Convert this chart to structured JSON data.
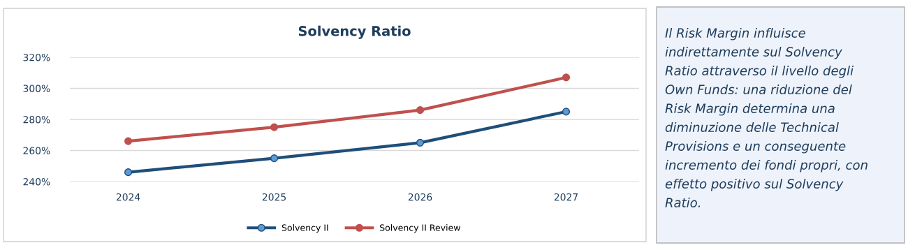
{
  "chart_data": {
    "type": "line",
    "title": "Solvency Ratio",
    "categories": [
      "2024",
      "2025",
      "2026",
      "2027"
    ],
    "series": [
      {
        "name": "Solvency II",
        "color": "#1f4e79",
        "values": [
          246,
          255,
          265,
          285
        ]
      },
      {
        "name": "Solvency II Review",
        "color": "#c0504d",
        "values": [
          266,
          275,
          286,
          307
        ]
      }
    ],
    "ylim": [
      240,
      320
    ],
    "yticks": [
      {
        "value": 240,
        "label": "240%"
      },
      {
        "value": 260,
        "label": "260%"
      },
      {
        "value": 280,
        "label": "280%"
      },
      {
        "value": 300,
        "label": "300%"
      },
      {
        "value": 320,
        "label": "320%"
      }
    ],
    "grid": "y",
    "legend": "bottom",
    "marker": "circle",
    "line_style": "solid",
    "annotations": [
      "Il Risk Margin influisce",
      "indirettamente sul Solvency",
      "Ratio attraverso il livello degli",
      "Own Funds: una riduzione del",
      "Risk Margin determina una",
      "diminuzione delle Technical",
      "Provisions e un conseguente",
      "incremento dei fondi propri, con",
      "effetto positivo sul Solvency",
      "Ratio."
    ]
  }
}
